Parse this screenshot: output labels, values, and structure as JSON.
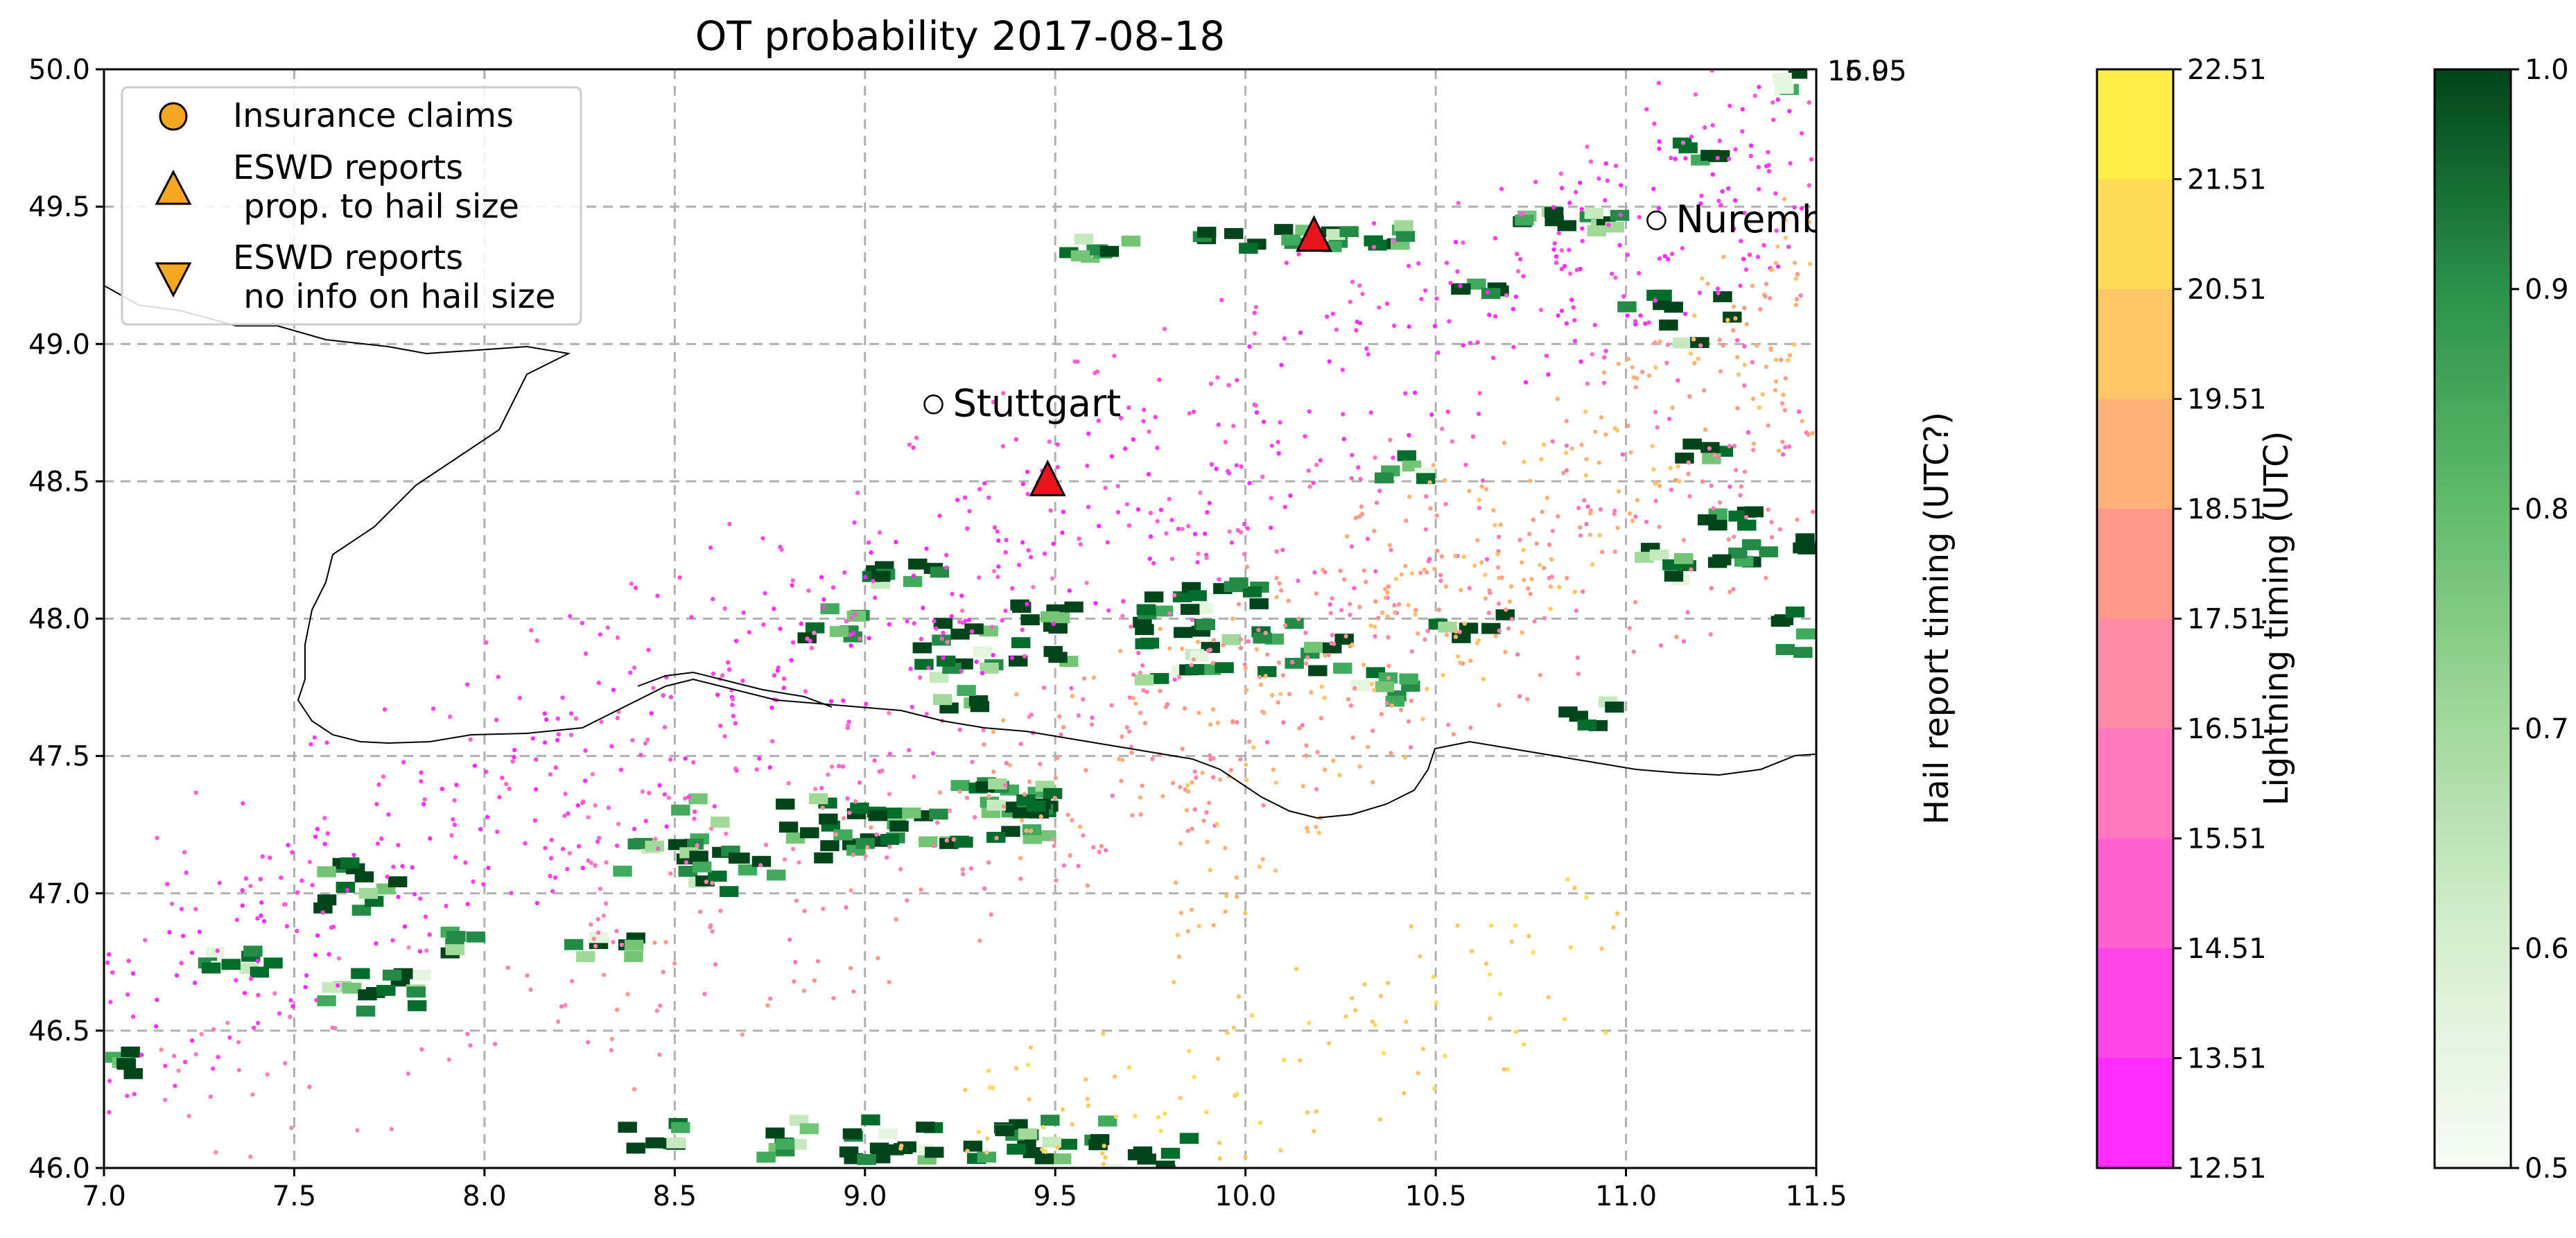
{
  "chart_data": {
    "type": "scatter",
    "title": "OT probability 2017-08-18",
    "map": {
      "xlim": [
        7.0,
        11.5
      ],
      "ylim": [
        46.0,
        50.0
      ],
      "xticks": [
        "7.0",
        "7.5",
        "8.0",
        "8.5",
        "9.0",
        "9.5",
        "10.0",
        "10.5",
        "11.0",
        "11.5"
      ],
      "yticks": [
        "46.0",
        "46.5",
        "47.0",
        "47.5",
        "48.0",
        "48.5",
        "49.0",
        "49.5",
        "50.0"
      ],
      "grid": true,
      "legend_position": "upper-left",
      "cities": [
        {
          "name": "Stuttgart",
          "lon": 9.18,
          "lat": 48.78
        },
        {
          "name": "Nuremberg",
          "lon": 11.08,
          "lat": 49.45
        }
      ],
      "eswd_reports_prop_hail_size": [
        {
          "lon": 9.48,
          "lat": 48.5
        },
        {
          "lon": 10.18,
          "lat": 49.39
        }
      ],
      "insurance_claims": [],
      "eswd_reports_no_info": []
    },
    "legend": {
      "insurance": "Insurance claims",
      "eswd_prop": "ESWD reports\n prop. to hail size",
      "eswd_noinfo": "ESWD reports\n no info on hail size"
    },
    "hail_colorbar": {
      "label": "Hail report timing (UTC?)",
      "tick_top": "16.05",
      "tick_top2": "15.95"
    },
    "lightning_colorbar": {
      "label": "Lightning timing (UTC)",
      "range": [
        12.51,
        22.51
      ],
      "ticks": [
        "12.51",
        "13.51",
        "14.51",
        "15.51",
        "16.51",
        "17.51",
        "18.51",
        "19.51",
        "20.51",
        "21.51",
        "22.51"
      ],
      "colors": [
        "#ff2cff",
        "#ff45e8",
        "#ff61cf",
        "#ff79bd",
        "#ff8aa7",
        "#ff9a8a",
        "#ffb177",
        "#ffc667",
        "#ffdb5a",
        "#ffee48"
      ]
    },
    "probability_colorbar": {
      "range": [
        0.5,
        1.0
      ],
      "ticks": [
        "0.5",
        "0.6",
        "0.7",
        "0.8",
        "0.9",
        "1.0"
      ]
    }
  }
}
